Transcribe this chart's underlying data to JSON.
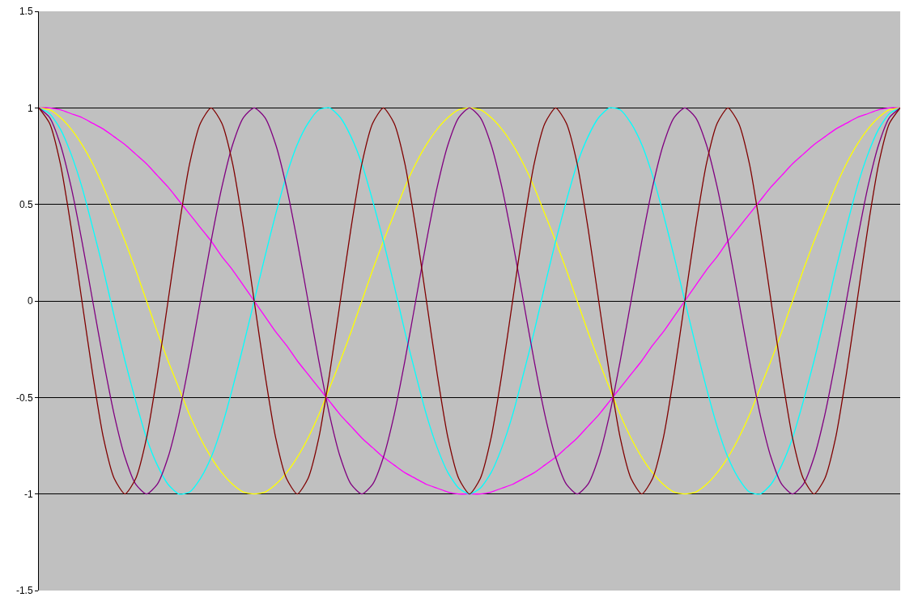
{
  "chart_data": {
    "type": "line",
    "categories": [
      null,
      null,
      null,
      null,
      null,
      null,
      null,
      null,
      null,
      null,
      null,
      null,
      null,
      null,
      null,
      null,
      null,
      null,
      null,
      null,
      null,
      null,
      null,
      null,
      null,
      null,
      null,
      null,
      null,
      null,
      null,
      null,
      null,
      null,
      null,
      null,
      null,
      null,
      null,
      null,
      null,
      null,
      null,
      null,
      null,
      null,
      null,
      null,
      null,
      null,
      null,
      null,
      null,
      null,
      null,
      null,
      null,
      null,
      null,
      null,
      null,
      null,
      null,
      null,
      null,
      null,
      null,
      null,
      null,
      null,
      null,
      null,
      null,
      null,
      null,
      null,
      null,
      null,
      null,
      null,
      null
    ],
    "series": [
      {
        "color": "#ff00ff",
        "values": [
          1,
          1,
          0.99,
          0.97,
          0.95,
          0.92,
          0.89,
          0.85,
          0.81,
          0.76,
          0.71,
          0.65,
          0.59,
          0.52,
          0.45,
          0.38,
          0.31,
          0.23,
          0.16,
          0.08,
          0,
          -0.08,
          -0.16,
          -0.23,
          -0.31,
          -0.38,
          -0.45,
          -0.52,
          -0.59,
          -0.65,
          -0.71,
          -0.76,
          -0.81,
          -0.85,
          -0.89,
          -0.92,
          -0.95,
          -0.97,
          -0.99,
          -1,
          -1,
          -1,
          -0.99,
          -0.97,
          -0.95,
          -0.92,
          -0.89,
          -0.85,
          -0.81,
          -0.76,
          -0.71,
          -0.65,
          -0.59,
          -0.52,
          -0.45,
          -0.38,
          -0.31,
          -0.23,
          -0.16,
          -0.08,
          0,
          0.08,
          0.16,
          0.23,
          0.31,
          0.38,
          0.45,
          0.52,
          0.59,
          0.65,
          0.71,
          0.76,
          0.81,
          0.85,
          0.89,
          0.92,
          0.95,
          0.97,
          0.99,
          1,
          1
        ]
      },
      {
        "color": "#ffff00",
        "values": [
          1,
          0.99,
          0.95,
          0.89,
          0.81,
          0.71,
          0.59,
          0.45,
          0.31,
          0.16,
          0,
          -0.16,
          -0.31,
          -0.45,
          -0.59,
          -0.71,
          -0.81,
          -0.89,
          -0.95,
          -0.99,
          -1,
          -0.99,
          -0.95,
          -0.89,
          -0.81,
          -0.71,
          -0.59,
          -0.45,
          -0.31,
          -0.16,
          0,
          0.16,
          0.31,
          0.45,
          0.59,
          0.71,
          0.81,
          0.89,
          0.95,
          0.99,
          1,
          0.99,
          0.95,
          0.89,
          0.81,
          0.71,
          0.59,
          0.45,
          0.31,
          0.16,
          0,
          -0.16,
          -0.31,
          -0.45,
          -0.59,
          -0.71,
          -0.81,
          -0.89,
          -0.95,
          -0.99,
          -1,
          -0.99,
          -0.95,
          -0.89,
          -0.81,
          -0.71,
          -0.59,
          -0.45,
          -0.31,
          -0.16,
          0,
          0.16,
          0.31,
          0.45,
          0.59,
          0.71,
          0.81,
          0.89,
          0.95,
          0.99,
          1
        ]
      },
      {
        "color": "#00ffff",
        "values": [
          1,
          0.97,
          0.89,
          0.76,
          0.59,
          0.38,
          0.16,
          -0.08,
          -0.31,
          -0.52,
          -0.71,
          -0.85,
          -0.95,
          -1,
          -0.99,
          -0.92,
          -0.81,
          -0.65,
          -0.45,
          -0.23,
          0,
          0.23,
          0.45,
          0.65,
          0.81,
          0.92,
          0.99,
          1,
          0.95,
          0.85,
          0.71,
          0.52,
          0.31,
          0.08,
          -0.16,
          -0.38,
          -0.59,
          -0.76,
          -0.89,
          -0.97,
          -1,
          -0.97,
          -0.89,
          -0.76,
          -0.59,
          -0.38,
          -0.16,
          0.08,
          0.31,
          0.52,
          0.71,
          0.85,
          0.95,
          1,
          0.99,
          0.92,
          0.81,
          0.65,
          0.45,
          0.23,
          0,
          -0.23,
          -0.45,
          -0.65,
          -0.81,
          -0.92,
          -0.99,
          -1,
          -0.95,
          -0.85,
          -0.71,
          -0.52,
          -0.31,
          -0.08,
          0.16,
          0.38,
          0.59,
          0.76,
          0.89,
          0.97,
          1
        ]
      },
      {
        "color": "#800080",
        "values": [
          1,
          0.95,
          0.81,
          0.59,
          0.31,
          0,
          -0.31,
          -0.59,
          -0.81,
          -0.95,
          -1,
          -0.95,
          -0.81,
          -0.59,
          -0.31,
          0,
          0.31,
          0.59,
          0.81,
          0.95,
          1,
          0.95,
          0.81,
          0.59,
          0.31,
          0,
          -0.31,
          -0.59,
          -0.81,
          -0.95,
          -1,
          -0.95,
          -0.81,
          -0.59,
          -0.31,
          0,
          0.31,
          0.59,
          0.81,
          0.95,
          1,
          0.95,
          0.81,
          0.59,
          0.31,
          0,
          -0.31,
          -0.59,
          -0.81,
          -0.95,
          -1,
          -0.95,
          -0.81,
          -0.59,
          -0.31,
          0,
          0.31,
          0.59,
          0.81,
          0.95,
          1,
          0.95,
          0.81,
          0.59,
          0.31,
          0,
          -0.31,
          -0.59,
          -0.81,
          -0.95,
          -1,
          -0.95,
          -0.81,
          -0.59,
          -0.31,
          0,
          0.31,
          0.59,
          0.81,
          0.95,
          1
        ]
      },
      {
        "color": "#800000",
        "values": [
          1,
          0.92,
          0.71,
          0.38,
          0,
          -0.38,
          -0.71,
          -0.92,
          -1,
          -0.92,
          -0.71,
          -0.38,
          0,
          0.38,
          0.71,
          0.92,
          1,
          0.92,
          0.71,
          0.38,
          0,
          -0.38,
          -0.71,
          -0.92,
          -1,
          -0.92,
          -0.71,
          -0.38,
          0,
          0.38,
          0.71,
          0.92,
          1,
          0.92,
          0.71,
          0.38,
          0,
          -0.38,
          -0.71,
          -0.92,
          -1,
          -0.92,
          -0.71,
          -0.38,
          0,
          0.38,
          0.71,
          0.92,
          1,
          0.92,
          0.71,
          0.38,
          0,
          -0.38,
          -0.71,
          -0.92,
          -1,
          -0.92,
          -0.71,
          -0.38,
          0,
          0.38,
          0.71,
          0.92,
          1,
          0.92,
          0.71,
          0.38,
          0,
          -0.38,
          -0.71,
          -0.92,
          -1,
          -0.92,
          -0.71,
          -0.38,
          0,
          0.38,
          0.71,
          0.92,
          1
        ]
      }
    ],
    "ylim": [
      -1.5,
      1.5
    ],
    "yticks": [
      -1.5,
      -1,
      -0.5,
      0,
      0.5,
      1,
      1.5
    ],
    "grid": "y",
    "tick_labels": "y",
    "marker": "none"
  }
}
